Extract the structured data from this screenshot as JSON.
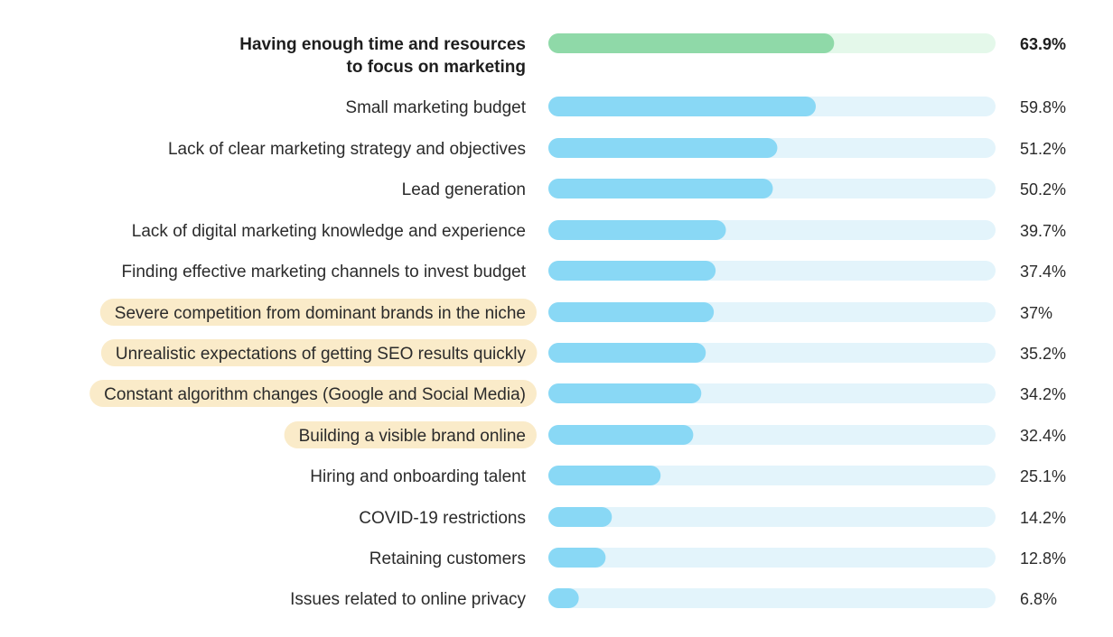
{
  "chart_data": {
    "type": "bar",
    "orientation": "horizontal",
    "unit": "%",
    "xlim": [
      0,
      100
    ],
    "grid": false,
    "legend": "none",
    "categories": [
      [
        "Having enough time and resources",
        "to focus on marketing"
      ],
      [
        "Small marketing budget"
      ],
      [
        "Lack of clear marketing strategy and objectives"
      ],
      [
        "Lead generation"
      ],
      [
        "Lack of digital marketing knowledge and experience"
      ],
      [
        "Finding effective marketing channels to invest budget"
      ],
      [
        "Severe competition from dominant brands in the niche"
      ],
      [
        "Unrealistic expectations of getting SEO results quickly"
      ],
      [
        "Constant algorithm changes (Google and Social Media)"
      ],
      [
        "Building a visible brand online"
      ],
      [
        "Hiring and onboarding talent"
      ],
      [
        "COVID-19 restrictions"
      ],
      [
        "Retaining customers"
      ],
      [
        "Issues related to online privacy"
      ]
    ],
    "values": [
      63.9,
      59.8,
      51.2,
      50.2,
      39.7,
      37.4,
      37,
      35.2,
      34.2,
      32.4,
      25.1,
      14.2,
      12.8,
      6.8
    ],
    "value_labels": [
      "63.9%",
      "59.8%",
      "51.2%",
      "50.2%",
      "39.7%",
      "37.4%",
      "37%",
      "35.2%",
      "34.2%",
      "32.4%",
      "25.1%",
      "14.2%",
      "12.8%",
      "6.8%"
    ],
    "emphasized_index": 0,
    "highlighted_indices": [
      6,
      7,
      8,
      9
    ],
    "colors": {
      "emphasized_fill": "#8fd9a8",
      "emphasized_track": "#e4f8ea",
      "bar_fill": "#89d8f5",
      "bar_track": "#e3f4fb",
      "highlight": "#faebc9"
    }
  }
}
